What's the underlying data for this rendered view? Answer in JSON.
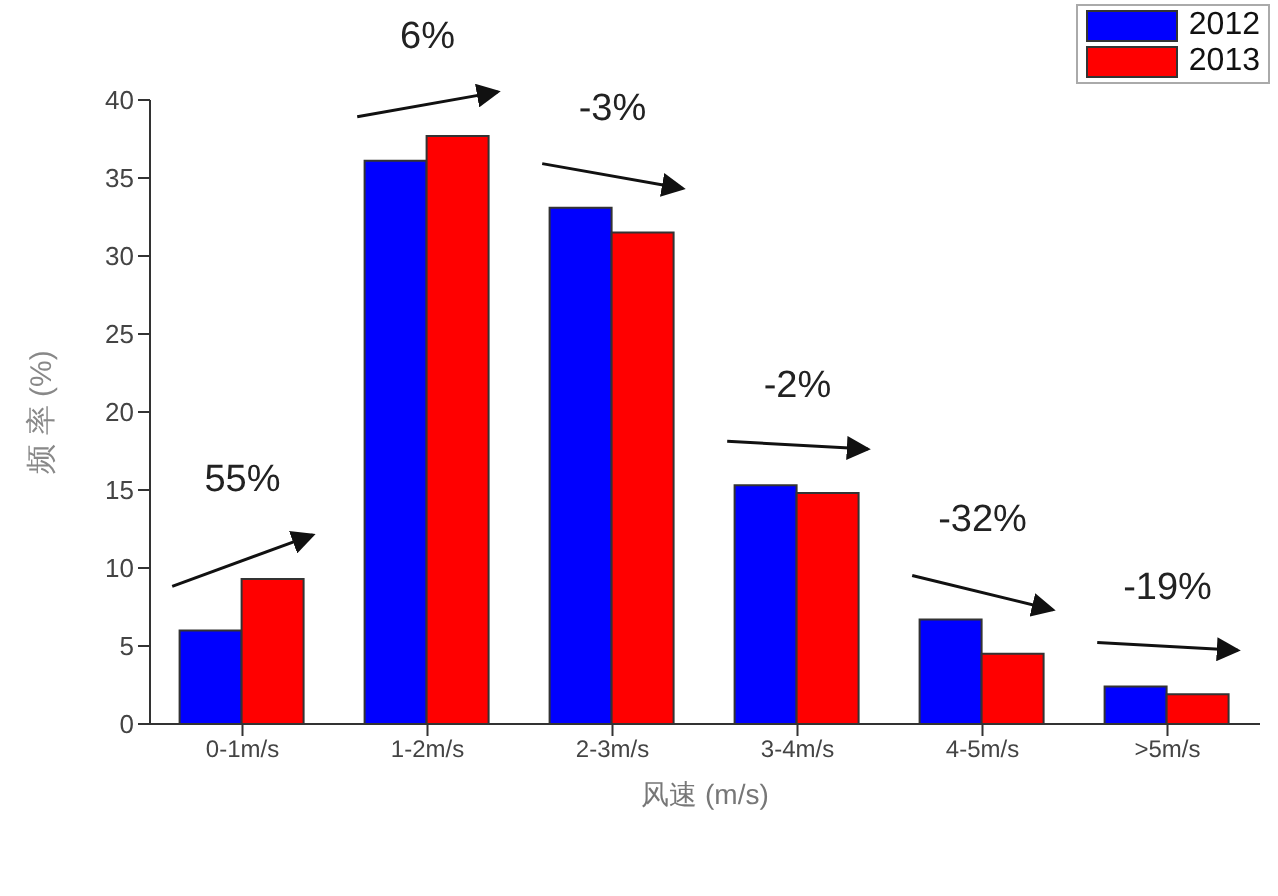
{
  "chart_data": {
    "type": "bar",
    "xlabel": "风速 (m/s)",
    "ylabel": "频 率 (%)",
    "categories": [
      "0-1m/s",
      "1-2m/s",
      "2-3m/s",
      "3-4m/s",
      "4-5m/s",
      ">5m/s"
    ],
    "series": [
      {
        "name": "2012",
        "color": "#0000ff",
        "values": [
          6.0,
          36.1,
          33.1,
          15.3,
          6.7,
          2.4
        ]
      },
      {
        "name": "2013",
        "color": "#ff0000",
        "values": [
          9.3,
          37.7,
          31.5,
          14.8,
          4.5,
          1.9
        ]
      }
    ],
    "ylim": [
      0,
      40
    ],
    "yticks": [
      0,
      5,
      10,
      15,
      20,
      25,
      30,
      35,
      40
    ],
    "grid": false,
    "legend": "top right",
    "annotations": [
      "55%",
      "6%",
      "-3%",
      "-2%",
      "-32%",
      "-19%"
    ]
  }
}
